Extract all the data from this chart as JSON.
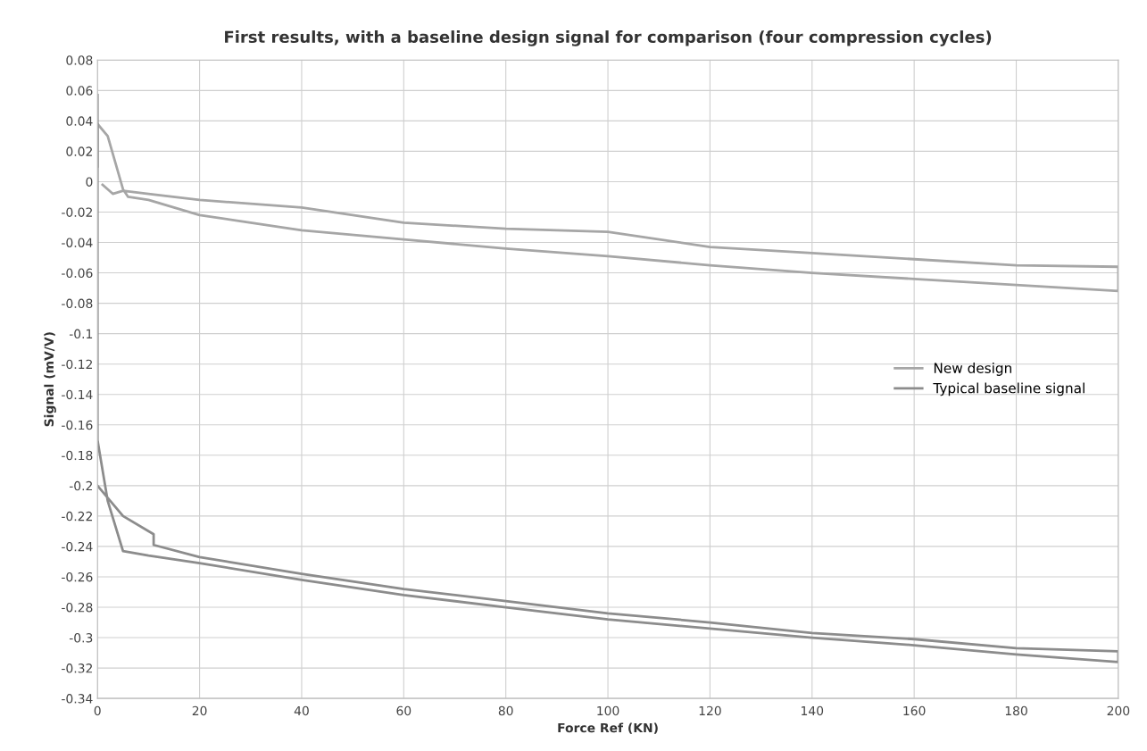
{
  "chart_data": {
    "type": "line",
    "title": "First results, with a baseline design signal for comparison (four compression cycles)",
    "xlabel": "Force Ref (KN)",
    "ylabel": "Signal (mV/V)",
    "xlim": [
      0,
      200
    ],
    "xticks": [
      0,
      20,
      40,
      60,
      80,
      100,
      120,
      140,
      160,
      180,
      200
    ],
    "ylim": [
      -0.34,
      0.08
    ],
    "yticks": [
      -0.34,
      -0.32,
      -0.3,
      -0.28,
      -0.26,
      -0.24,
      -0.22,
      -0.2,
      -0.18,
      -0.16,
      -0.14,
      -0.12,
      -0.1,
      -0.08,
      -0.06,
      -0.04,
      -0.02,
      0,
      0.02,
      0.04,
      0.06,
      0.08
    ],
    "grid": true,
    "legend": "right",
    "marker": "none",
    "line_style": "solid",
    "series": [
      {
        "name": "New design",
        "color": "#a6a6a6",
        "x": [
          0,
          0,
          2,
          5,
          6,
          10,
          20,
          30,
          40,
          60,
          80,
          100,
          120,
          140,
          160,
          180,
          200,
          200,
          180,
          160,
          140,
          120,
          100,
          80,
          60,
          40,
          20,
          10,
          5,
          3,
          1
        ],
        "values": [
          0.01,
          0.038,
          0.03,
          -0.005,
          -0.01,
          -0.012,
          -0.022,
          -0.027,
          -0.032,
          -0.038,
          -0.044,
          -0.049,
          -0.055,
          -0.06,
          -0.064,
          -0.068,
          -0.072,
          -0.056,
          -0.055,
          -0.051,
          -0.047,
          -0.043,
          -0.033,
          -0.031,
          -0.027,
          -0.017,
          -0.012,
          -0.008,
          -0.006,
          -0.008,
          -0.002
        ]
      },
      {
        "name": "Typical baseline signal",
        "color": "#8c8c8c",
        "x": [
          0,
          0,
          0,
          2,
          5,
          10,
          20,
          40,
          60,
          80,
          100,
          120,
          140,
          160,
          180,
          200,
          200,
          180,
          160,
          140,
          120,
          100,
          80,
          60,
          40,
          20,
          11,
          11,
          5,
          0
        ],
        "values": [
          0.057,
          0.05,
          -0.17,
          -0.21,
          -0.243,
          -0.246,
          -0.251,
          -0.262,
          -0.272,
          -0.28,
          -0.288,
          -0.294,
          -0.3,
          -0.305,
          -0.311,
          -0.316,
          -0.309,
          -0.307,
          -0.301,
          -0.297,
          -0.29,
          -0.284,
          -0.276,
          -0.268,
          -0.258,
          -0.247,
          -0.239,
          -0.232,
          -0.22,
          -0.2
        ]
      }
    ]
  }
}
